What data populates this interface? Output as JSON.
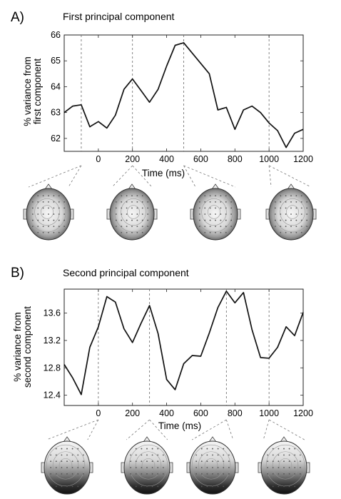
{
  "panels": [
    {
      "letter": "A)",
      "title": "First principal component",
      "xlabel": "Time (ms)",
      "ylabel_line1": "% variance from",
      "ylabel_line2": "first component"
    },
    {
      "letter": "B)",
      "title": "Second principal component",
      "xlabel": "Time (ms)",
      "ylabel_line1": "% variance from",
      "ylabel_line2": "second component"
    }
  ],
  "chart_data": [
    {
      "type": "line",
      "title": "First principal component",
      "xlabel": "Time (ms)",
      "ylabel": "% variance from first component",
      "xlim": [
        -200,
        1200
      ],
      "ylim": [
        61.5,
        66
      ],
      "xticks": [
        0,
        200,
        400,
        600,
        800,
        1000,
        1200
      ],
      "yticks": [
        62,
        63,
        64,
        65,
        66
      ],
      "vlines": [
        -100,
        200,
        500,
        1000
      ],
      "x": [
        -200,
        -150,
        -100,
        -50,
        0,
        50,
        100,
        150,
        200,
        250,
        300,
        350,
        400,
        450,
        500,
        550,
        600,
        650,
        700,
        750,
        800,
        850,
        900,
        950,
        1000,
        1050,
        1100,
        1150,
        1200
      ],
      "values": [
        63.0,
        63.25,
        63.3,
        62.45,
        62.65,
        62.4,
        62.9,
        63.9,
        64.3,
        63.85,
        63.4,
        63.9,
        64.8,
        65.6,
        65.7,
        65.3,
        64.9,
        64.5,
        63.1,
        63.2,
        62.35,
        63.1,
        63.25,
        63.0,
        62.6,
        62.3,
        61.65,
        62.2,
        62.35
      ]
    },
    {
      "type": "line",
      "title": "Second principal component",
      "xlabel": "Time (ms)",
      "ylabel": "% variance from second component",
      "xlim": [
        -200,
        1200
      ],
      "ylim": [
        12.25,
        13.95
      ],
      "xticks": [
        0,
        200,
        400,
        600,
        800,
        1000,
        1200
      ],
      "yticks": [
        12.4,
        12.8,
        13.2,
        13.6
      ],
      "vlines": [
        0,
        300,
        750,
        1000
      ],
      "x": [
        -200,
        -150,
        -100,
        -50,
        0,
        50,
        100,
        150,
        200,
        250,
        300,
        350,
        400,
        450,
        500,
        550,
        600,
        650,
        700,
        750,
        800,
        850,
        900,
        950,
        1000,
        1050,
        1100,
        1150,
        1200
      ],
      "values": [
        12.85,
        12.65,
        12.41,
        13.1,
        13.4,
        13.84,
        13.76,
        13.37,
        13.17,
        13.45,
        13.71,
        13.3,
        12.63,
        12.48,
        12.86,
        12.98,
        12.97,
        13.31,
        13.68,
        13.92,
        13.75,
        13.9,
        13.36,
        12.95,
        12.94,
        13.1,
        13.4,
        13.27,
        13.61
      ]
    }
  ],
  "topomaps": [
    {
      "count": 4,
      "style": "first"
    },
    {
      "count": 4,
      "style": "second"
    }
  ]
}
